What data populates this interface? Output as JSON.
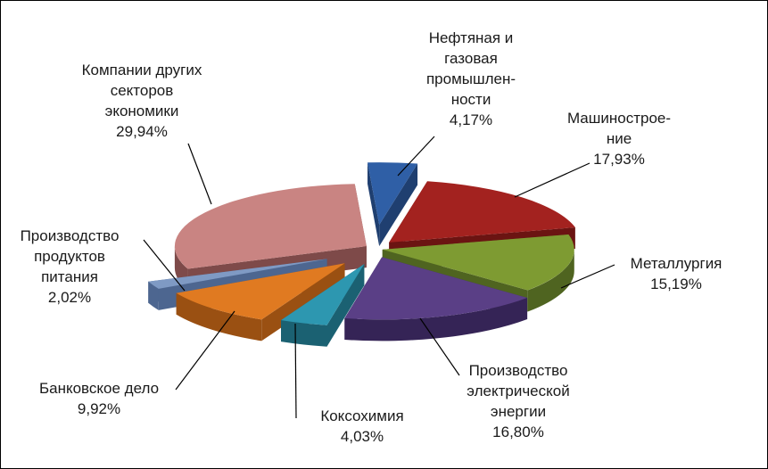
{
  "chart_data": {
    "type": "pie",
    "title": "",
    "slices": [
      {
        "label": "Нефтяная и\nгазовая\nпромышлен-\nности",
        "value": 4.17,
        "value_text": "4,17%",
        "color": "#2f5fa6",
        "side": "#1f3f70"
      },
      {
        "label": "Машинострое-\nние",
        "value": 17.93,
        "value_text": "17,93%",
        "color": "#a3221f",
        "side": "#6b1412"
      },
      {
        "label": "Металлургия",
        "value": 15.19,
        "value_text": "15,19%",
        "color": "#7e9b32",
        "side": "#4f6420"
      },
      {
        "label": "Производство\nэлектрической\nэнергии",
        "value": 16.8,
        "value_text": "16,80%",
        "color": "#5a3f86",
        "side": "#352456"
      },
      {
        "label": "Коксохимия",
        "value": 4.03,
        "value_text": "4,03%",
        "color": "#2d97b0",
        "side": "#1b6172"
      },
      {
        "label": "Банковское дело",
        "value": 9.92,
        "value_text": "9,92%",
        "color": "#e07a21",
        "side": "#9a5012"
      },
      {
        "label": "Производство\nпродуктов\nпитания",
        "value": 2.02,
        "value_text": "2,02%",
        "color": "#7f9ac4",
        "side": "#4d6690"
      },
      {
        "label": "Компании других\nсекторов\nэкономики",
        "value": 29.94,
        "value_text": "29,94%",
        "color": "#c98482",
        "side": "#7e4a49"
      }
    ]
  }
}
